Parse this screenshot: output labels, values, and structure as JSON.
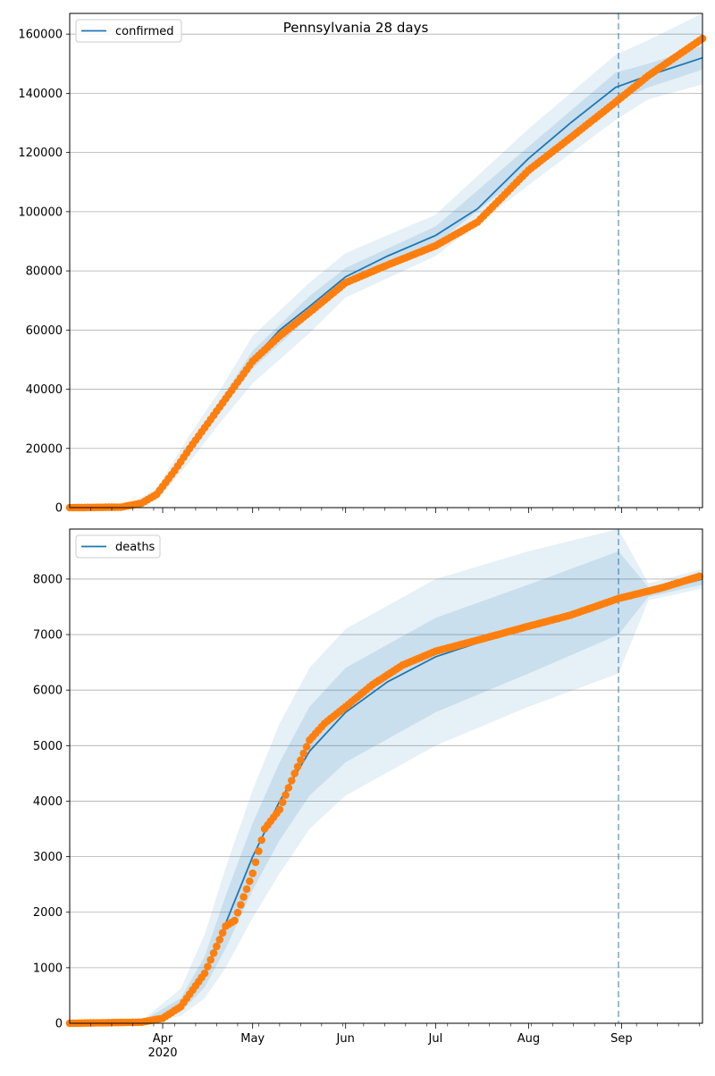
{
  "figure_title": "Pennsylvania 28 days",
  "chart_data": [
    {
      "type": "line",
      "title": "Pennsylvania 28 days",
      "legend": {
        "label": "confirmed",
        "placement": "top-left"
      },
      "x_axis": {
        "type": "date",
        "range": [
          "2020-03-01",
          "2020-09-28"
        ],
        "tick_labels": [
          "Apr",
          "May",
          "Jun",
          "Jul",
          "Aug",
          "Sep"
        ],
        "tick_dates": [
          "2020-04-01",
          "2020-05-01",
          "2020-06-01",
          "2020-07-01",
          "2020-08-01",
          "2020-09-01"
        ],
        "year_label": "2020"
      },
      "ylim": [
        0,
        167000
      ],
      "y_ticks": [
        0,
        20000,
        40000,
        60000,
        80000,
        100000,
        120000,
        140000,
        160000
      ],
      "y_tick_labels": [
        "0",
        "20000",
        "40000",
        "60000",
        "80000",
        "100000",
        "120000",
        "140000",
        "160000"
      ],
      "grid": "horizontal",
      "forecast_start": "2020-08-31",
      "observed_color": "#ff7f0e",
      "model_color": "#1f77b4",
      "model_series": [
        [
          "2020-03-01",
          0
        ],
        [
          "2020-03-20",
          400
        ],
        [
          "2020-03-25",
          1800
        ],
        [
          "2020-03-30",
          4500
        ],
        [
          "2020-04-05",
          13000
        ],
        [
          "2020-04-10",
          20000
        ],
        [
          "2020-04-15",
          27000
        ],
        [
          "2020-04-20",
          34000
        ],
        [
          "2020-04-25",
          41000
        ],
        [
          "2020-05-01",
          50000
        ],
        [
          "2020-05-10",
          60000
        ],
        [
          "2020-05-20",
          68000
        ],
        [
          "2020-06-01",
          78000
        ],
        [
          "2020-06-15",
          85000
        ],
        [
          "2020-07-01",
          92000
        ],
        [
          "2020-07-15",
          101000
        ],
        [
          "2020-08-01",
          118000
        ],
        [
          "2020-08-15",
          130000
        ],
        [
          "2020-08-30",
          142000
        ],
        [
          "2020-09-10",
          146000
        ],
        [
          "2020-09-28",
          152000
        ]
      ],
      "model_band_inner": [
        [
          "2020-03-01",
          0,
          0
        ],
        [
          "2020-03-20",
          300,
          500
        ],
        [
          "2020-03-30",
          3800,
          5200
        ],
        [
          "2020-04-10",
          18500,
          21500
        ],
        [
          "2020-04-20",
          32000,
          36000
        ],
        [
          "2020-05-01",
          47000,
          53000
        ],
        [
          "2020-05-20",
          64500,
          71500
        ],
        [
          "2020-06-01",
          75000,
          81000
        ],
        [
          "2020-07-01",
          89000,
          95000
        ],
        [
          "2020-08-01",
          114000,
          122000
        ],
        [
          "2020-08-30",
          137000,
          147000
        ],
        [
          "2020-09-10",
          142000,
          150000
        ],
        [
          "2020-09-28",
          148000,
          156000
        ]
      ],
      "model_band_outer": [
        [
          "2020-03-01",
          0,
          0
        ],
        [
          "2020-03-20",
          150,
          700
        ],
        [
          "2020-03-30",
          2500,
          6500
        ],
        [
          "2020-04-10",
          15500,
          24500
        ],
        [
          "2020-04-20",
          28500,
          39500
        ],
        [
          "2020-05-01",
          42000,
          58000
        ],
        [
          "2020-05-20",
          59000,
          76000
        ],
        [
          "2020-06-01",
          71000,
          86000
        ],
        [
          "2020-07-01",
          85000,
          99000
        ],
        [
          "2020-08-01",
          109000,
          128000
        ],
        [
          "2020-08-30",
          131000,
          153000
        ],
        [
          "2020-09-10",
          138000,
          158000
        ],
        [
          "2020-09-28",
          143000,
          167000
        ]
      ],
      "observed_anchors": [
        [
          "2020-03-01",
          0
        ],
        [
          "2020-03-18",
          150
        ],
        [
          "2020-03-25",
          1500
        ],
        [
          "2020-03-30",
          4500
        ],
        [
          "2020-04-05",
          12500
        ],
        [
          "2020-04-10",
          20000
        ],
        [
          "2020-04-15",
          27000
        ],
        [
          "2020-04-20",
          34000
        ],
        [
          "2020-04-25",
          41000
        ],
        [
          "2020-05-01",
          49500
        ],
        [
          "2020-05-10",
          58000
        ],
        [
          "2020-05-20",
          66000
        ],
        [
          "2020-06-01",
          76000
        ],
        [
          "2020-06-15",
          82000
        ],
        [
          "2020-07-01",
          88500
        ],
        [
          "2020-07-15",
          96500
        ],
        [
          "2020-08-01",
          114000
        ],
        [
          "2020-08-15",
          125000
        ],
        [
          "2020-08-30",
          137000
        ],
        [
          "2020-09-10",
          146000
        ],
        [
          "2020-09-28",
          158500
        ]
      ]
    },
    {
      "type": "line",
      "title": "",
      "legend": {
        "label": "deaths",
        "placement": "top-left"
      },
      "x_axis": {
        "type": "date",
        "range": [
          "2020-03-01",
          "2020-09-28"
        ],
        "tick_labels": [
          "Apr",
          "May",
          "Jun",
          "Jul",
          "Aug",
          "Sep"
        ],
        "tick_dates": [
          "2020-04-01",
          "2020-05-01",
          "2020-06-01",
          "2020-07-01",
          "2020-08-01",
          "2020-09-01"
        ],
        "year_label": "2020"
      },
      "ylim": [
        0,
        8900
      ],
      "y_ticks": [
        0,
        1000,
        2000,
        3000,
        4000,
        5000,
        6000,
        7000,
        8000
      ],
      "y_tick_labels": [
        "0",
        "1000",
        "2000",
        "3000",
        "4000",
        "5000",
        "6000",
        "7000",
        "8000"
      ],
      "grid": "horizontal",
      "forecast_start": "2020-08-31",
      "observed_color": "#ff7f0e",
      "model_color": "#1f77b4",
      "model_series": [
        [
          "2020-03-01",
          0
        ],
        [
          "2020-03-25",
          20
        ],
        [
          "2020-04-01",
          80
        ],
        [
          "2020-04-07",
          300
        ],
        [
          "2020-04-15",
          900
        ],
        [
          "2020-04-22",
          1800
        ],
        [
          "2020-05-01",
          3000
        ],
        [
          "2020-05-10",
          4000
        ],
        [
          "2020-05-20",
          4900
        ],
        [
          "2020-06-01",
          5600
        ],
        [
          "2020-06-15",
          6150
        ],
        [
          "2020-07-01",
          6600
        ],
        [
          "2020-07-15",
          6850
        ],
        [
          "2020-08-01",
          7100
        ],
        [
          "2020-08-15",
          7350
        ],
        [
          "2020-08-31",
          7650
        ],
        [
          "2020-09-10",
          7750
        ],
        [
          "2020-09-28",
          8000
        ]
      ],
      "model_band_inner": [
        [
          "2020-03-01",
          0,
          0
        ],
        [
          "2020-03-25",
          10,
          35
        ],
        [
          "2020-04-07",
          200,
          450
        ],
        [
          "2020-04-15",
          650,
          1200
        ],
        [
          "2020-04-22",
          1350,
          2300
        ],
        [
          "2020-05-01",
          2400,
          3600
        ],
        [
          "2020-05-10",
          3300,
          4700
        ],
        [
          "2020-05-20",
          4100,
          5700
        ],
        [
          "2020-06-01",
          4700,
          6400
        ],
        [
          "2020-07-01",
          5600,
          7300
        ],
        [
          "2020-08-01",
          6300,
          7900
        ],
        [
          "2020-08-31",
          7000,
          8500
        ],
        [
          "2020-09-10",
          7680,
          7850
        ],
        [
          "2020-09-28",
          7900,
          8100
        ]
      ],
      "model_band_outer": [
        [
          "2020-03-01",
          0,
          0
        ],
        [
          "2020-03-25",
          5,
          50
        ],
        [
          "2020-04-07",
          130,
          620
        ],
        [
          "2020-04-15",
          450,
          1600
        ],
        [
          "2020-04-22",
          1000,
          2800
        ],
        [
          "2020-05-01",
          1900,
          4200
        ],
        [
          "2020-05-10",
          2700,
          5400
        ],
        [
          "2020-05-20",
          3500,
          6400
        ],
        [
          "2020-06-01",
          4100,
          7100
        ],
        [
          "2020-07-01",
          5000,
          8000
        ],
        [
          "2020-08-01",
          5700,
          8500
        ],
        [
          "2020-08-31",
          6300,
          8900
        ],
        [
          "2020-09-10",
          7620,
          7920
        ],
        [
          "2020-09-28",
          7830,
          8180
        ]
      ],
      "observed_anchors": [
        [
          "2020-03-01",
          0
        ],
        [
          "2020-03-25",
          20
        ],
        [
          "2020-04-01",
          90
        ],
        [
          "2020-04-07",
          300
        ],
        [
          "2020-04-15",
          900
        ],
        [
          "2020-04-22",
          1750
        ],
        [
          "2020-04-25",
          1850
        ],
        [
          "2020-05-01",
          2700
        ],
        [
          "2020-05-05",
          3500
        ],
        [
          "2020-05-10",
          3850
        ],
        [
          "2020-05-15",
          4500
        ],
        [
          "2020-05-20",
          5100
        ],
        [
          "2020-05-25",
          5400
        ],
        [
          "2020-06-01",
          5700
        ],
        [
          "2020-06-10",
          6100
        ],
        [
          "2020-06-20",
          6450
        ],
        [
          "2020-07-01",
          6700
        ],
        [
          "2020-07-15",
          6900
        ],
        [
          "2020-08-01",
          7150
        ],
        [
          "2020-08-15",
          7350
        ],
        [
          "2020-08-31",
          7650
        ],
        [
          "2020-09-15",
          7850
        ],
        [
          "2020-09-27",
          8050
        ]
      ]
    }
  ]
}
